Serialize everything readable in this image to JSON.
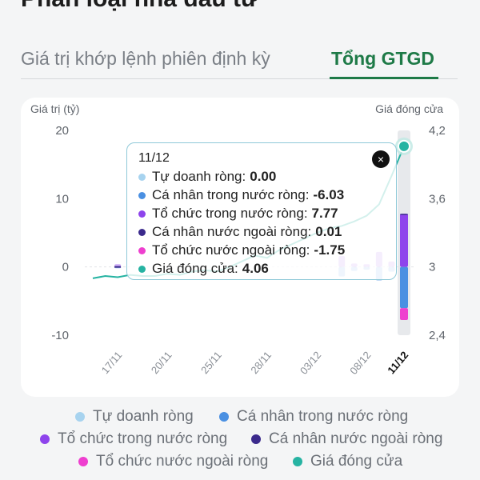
{
  "page_title": "Phân loại nhà đầu tư",
  "tabs": [
    {
      "label": "Giá trị khớp lệnh phiên định kỳ",
      "active": false
    },
    {
      "label": "Tổng GTGD",
      "active": true
    }
  ],
  "colors": {
    "accent_green": "#1e7a47",
    "tu_doanh": "#a7d3ef",
    "ca_nhan_trong_nuoc": "#4a90e2",
    "to_chuc_trong_nuoc": "#8e44ec",
    "ca_nhan_nuoc_ngoai": "#3b2a8c",
    "to_chuc_nuoc_ngoai": "#ee3fcf",
    "gia_dong_cua": "#26b3a2"
  },
  "chart_data": {
    "type": "bar",
    "left_axis_label": "Giá trị (tỷ)",
    "right_axis_label": "Giá đóng cửa",
    "left_ticks": [
      "20",
      "10",
      "0",
      "-10"
    ],
    "right_ticks": [
      "4,2",
      "3,6",
      "3",
      "2,4"
    ],
    "ylim_left": [
      -10,
      20
    ],
    "ylim_right": [
      2.4,
      4.2
    ],
    "x_ticks": [
      "17/11",
      "20/11",
      "25/11",
      "28/11",
      "03/12",
      "08/12",
      "11/12"
    ],
    "selected_date": "11/12",
    "bars": [
      {
        "x": 2,
        "values": [
          0,
          -0.2,
          0.4,
          0,
          0
        ]
      },
      {
        "x": 20,
        "values": [
          0,
          -1.4,
          1.6,
          0,
          0
        ]
      },
      {
        "x": 21,
        "values": [
          0,
          -0.6,
          0.5,
          0,
          0
        ]
      },
      {
        "x": 22,
        "values": [
          0,
          -0.4,
          0.4,
          0,
          0
        ]
      },
      {
        "x": 23,
        "values": [
          0,
          -2.0,
          2.2,
          0,
          0
        ]
      },
      {
        "x": 24,
        "values": [
          0,
          -0.7,
          0.8,
          0,
          0
        ]
      },
      {
        "x": 25,
        "values": [
          0,
          -6.03,
          7.77,
          0.01,
          -1.75
        ]
      }
    ],
    "price_line": [
      {
        "x": 0,
        "y": 2.9
      },
      {
        "x": 1,
        "y": 2.92
      },
      {
        "x": 2,
        "y": 2.91
      },
      {
        "x": 3,
        "y": 2.93
      },
      {
        "x": 4,
        "y": 2.92
      },
      {
        "x": 5,
        "y": 2.92
      },
      {
        "x": 6,
        "y": 2.94
      },
      {
        "x": 7,
        "y": 2.93
      },
      {
        "x": 8,
        "y": 2.96
      },
      {
        "x": 9,
        "y": 2.97
      },
      {
        "x": 10,
        "y": 2.96
      },
      {
        "x": 11,
        "y": 3.0
      },
      {
        "x": 12,
        "y": 3.05
      },
      {
        "x": 13,
        "y": 3.1
      },
      {
        "x": 14,
        "y": 3.08
      },
      {
        "x": 15,
        "y": 3.15
      },
      {
        "x": 16,
        "y": 3.2
      },
      {
        "x": 17,
        "y": 3.25
      },
      {
        "x": 18,
        "y": 3.3
      },
      {
        "x": 19,
        "y": 3.34
      },
      {
        "x": 20,
        "y": 3.36
      },
      {
        "x": 21,
        "y": 3.4
      },
      {
        "x": 22,
        "y": 3.45
      },
      {
        "x": 23,
        "y": 3.55
      },
      {
        "x": 24,
        "y": 3.8
      },
      {
        "x": 25,
        "y": 4.06
      }
    ]
  },
  "tooltip": {
    "date": "11/12",
    "close": "×",
    "rows": [
      {
        "label": "Tự doanh ròng:",
        "value": "0.00"
      },
      {
        "label": "Cá nhân trong nước ròng:",
        "value": "-6.03"
      },
      {
        "label": "Tổ chức trong nước ròng:",
        "value": "7.77"
      },
      {
        "label": "Cá nhân nước ngoài ròng:",
        "value": "0.01"
      },
      {
        "label": "Tổ chức nước ngoài ròng:",
        "value": "-1.75"
      },
      {
        "label": "Giá đóng cửa:",
        "value": "4.06"
      }
    ]
  },
  "legend": [
    {
      "label": "Tự doanh ròng"
    },
    {
      "label": "Cá nhân trong nước ròng"
    },
    {
      "label": "Tổ chức trong nước ròng"
    },
    {
      "label": "Cá nhân nước ngoài ròng"
    },
    {
      "label": "Tổ chức nước ngoài ròng"
    },
    {
      "label": "Giá đóng cửa"
    }
  ]
}
